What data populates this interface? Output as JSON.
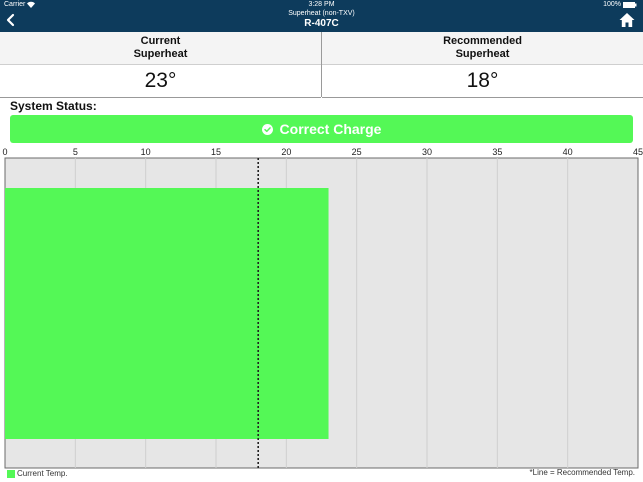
{
  "status_bar": {
    "carrier": "Carrier",
    "time": "3:28 PM",
    "battery": "100%"
  },
  "nav": {
    "subtitle": "Superheat (non-TXV)",
    "title": "R-407C"
  },
  "readings": {
    "current": {
      "label_line1": "Current",
      "label_line2": "Superheat",
      "value": "23°"
    },
    "recommended": {
      "label_line1": "Recommended",
      "label_line2": "Superheat",
      "value": "18°"
    }
  },
  "system_status": {
    "label": "System Status:",
    "result": "Correct Charge"
  },
  "colors": {
    "header": "#0d3b5c",
    "accent_green": "#54f856",
    "plot_bg": "#e6e6e6"
  },
  "icons": {
    "back": "chevron-left-icon",
    "home": "home-icon",
    "check": "check-circle-icon",
    "wifi": "wifi-icon",
    "battery": "battery-icon"
  },
  "chart_data": {
    "type": "bar",
    "orientation": "horizontal",
    "x_ticks": [
      "0",
      "5",
      "10",
      "15",
      "20",
      "25",
      "30",
      "35",
      "40",
      "45"
    ],
    "xlim": [
      0,
      45
    ],
    "series": [
      {
        "name": "Current Temp.",
        "values": [
          23
        ]
      }
    ],
    "reference_line": {
      "value": 18
    },
    "grid": true,
    "legend_position": "bottom-left",
    "footnote": "*Line = Recommended Temp."
  }
}
